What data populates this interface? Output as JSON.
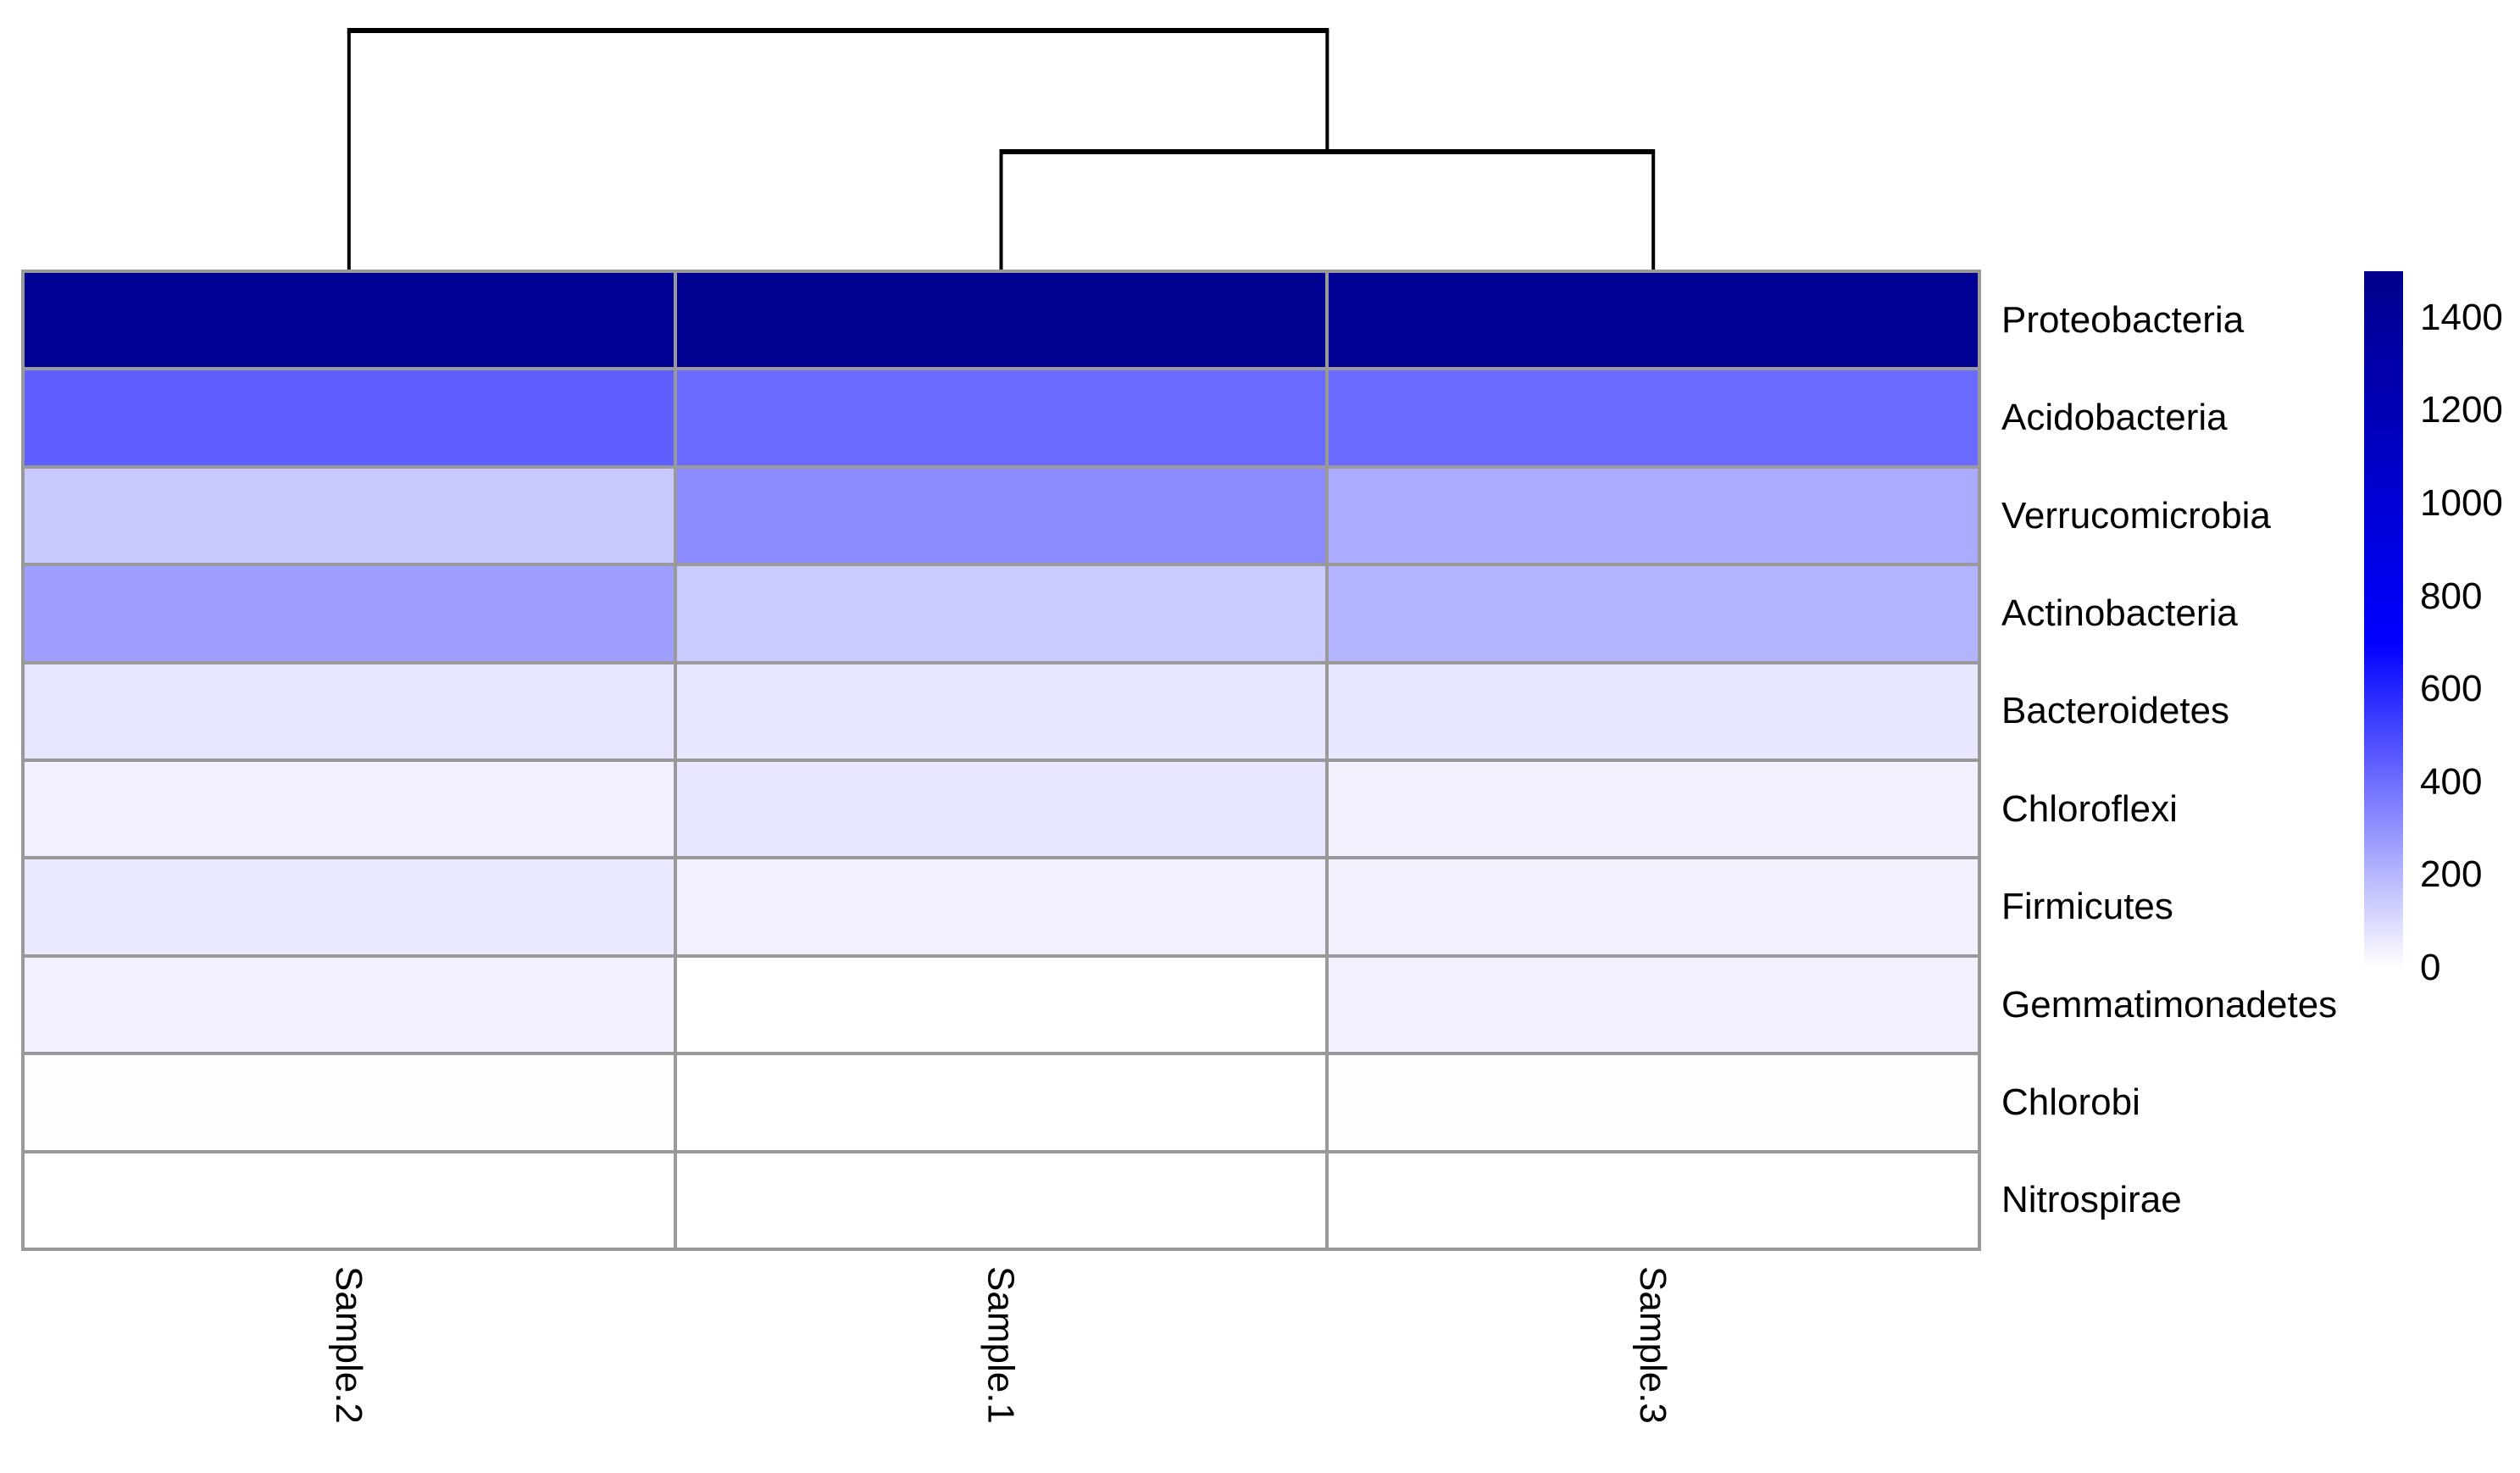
{
  "figure": {
    "background_color": "#ffffff",
    "plot_kind": "clustered heatmap with column dendrogram"
  },
  "chart_data": {
    "type": "heatmap",
    "title": "",
    "xlabel": "",
    "ylabel": "",
    "rows": [
      "Proteobacteria",
      "Acidobacteria",
      "Verrucomicrobia",
      "Actinobacteria",
      "Bacteroidetes",
      "Chloroflexi",
      "Firmicutes",
      "Gemmatimonadetes",
      "Chlorobi",
      "Nitrospirae"
    ],
    "columns": [
      "Sample.2",
      "Sample.1",
      "Sample.3"
    ],
    "values": [
      [
        1450,
        1460,
        1450
      ],
      [
        440,
        410,
        408
      ],
      [
        148,
        318,
        230
      ],
      [
        266,
        146,
        210
      ],
      [
        68,
        65,
        66
      ],
      [
        38,
        66,
        35
      ],
      [
        62,
        38,
        37
      ],
      [
        42,
        0,
        38
      ],
      [
        3,
        1,
        2
      ],
      [
        1,
        0,
        1
      ]
    ],
    "color_scale": {
      "min": 0,
      "max": 1500,
      "stops": [
        {
          "value": 0,
          "color": "#FFFFFF"
        },
        {
          "value": 700,
          "color": "#0000FF"
        },
        {
          "value": 1500,
          "color": "#00008B"
        }
      ]
    },
    "legend_ticks": [
      1400,
      1200,
      1000,
      800,
      600,
      400,
      200,
      0
    ],
    "legend_position": "right",
    "grid_line_color": "#999999",
    "column_dendrogram": {
      "line_color": "#000000",
      "leaf_order": [
        "Sample.2",
        "Sample.1",
        "Sample.3"
      ],
      "merges": [
        {
          "children": [
            "Sample.1",
            "Sample.3"
          ],
          "height": 0.5
        },
        {
          "children": [
            "Sample.2",
            "merge:0"
          ],
          "height": 1.0
        }
      ]
    }
  }
}
